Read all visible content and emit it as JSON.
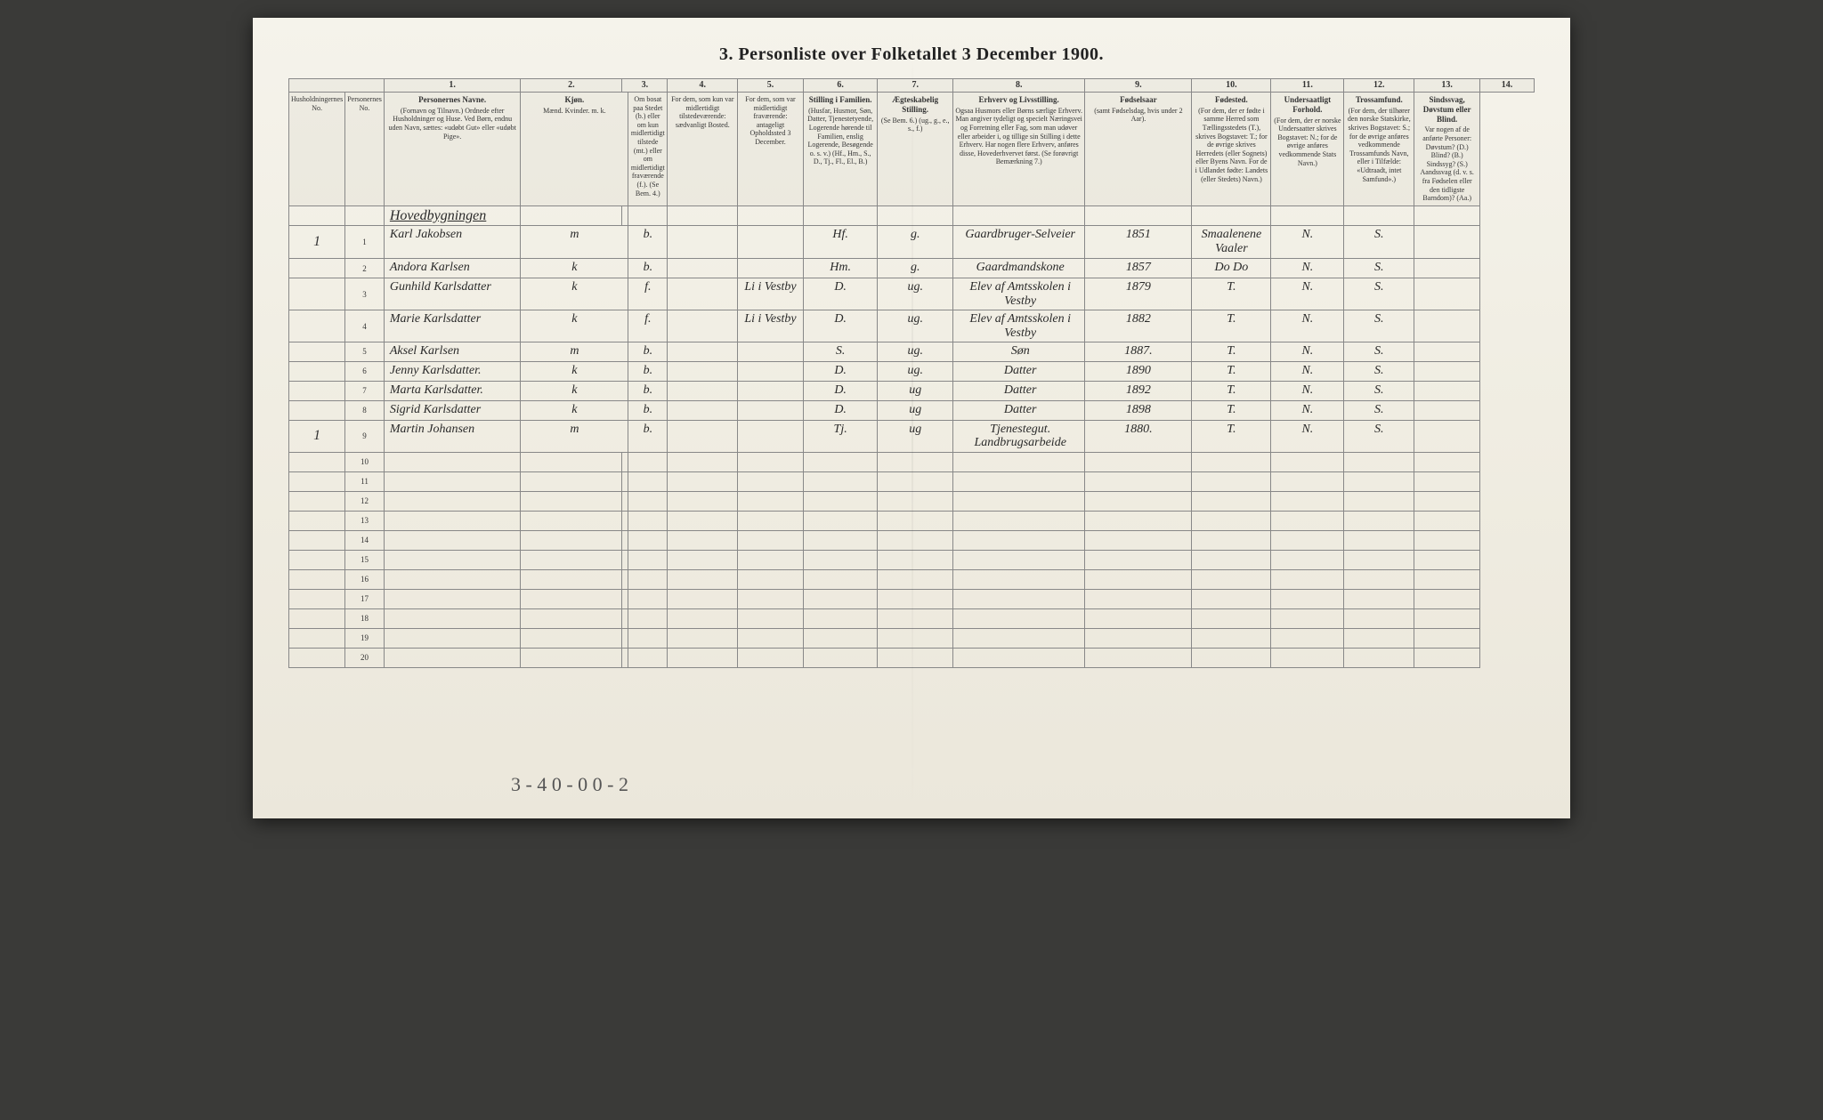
{
  "title": "3. Personliste over Folketallet 3 December 1900.",
  "columns": {
    "nums": [
      "",
      "1.",
      "2.",
      "3.",
      "4.",
      "5.",
      "6.",
      "7.",
      "8.",
      "9.",
      "10.",
      "11.",
      "12.",
      "13.",
      "14."
    ],
    "headers": [
      {
        "b": "",
        "t": "Husholdningernes No."
      },
      {
        "b": "",
        "t": "Personernes No."
      },
      {
        "b": "Personernes Navne.",
        "t": "(Fornavn og Tilnavn.) Ordnede efter Husholdninger og Huse. Ved Børn, endnu uden Navn, sættes: «udøbt Gut» eller «udøbt Pige»."
      },
      {
        "b": "Kjøn.",
        "t": "Mænd. Kvinder. m. k."
      },
      {
        "b": "",
        "t": "Om bosat paa Stedet (b.) eller om kun midlertidigt tilstede (mt.) eller om midlertidigt fraværende (f.). (Se Bem. 4.)"
      },
      {
        "b": "",
        "t": "For dem, som kun var midlertidigt tilstedeværende: sædvanligt Bosted."
      },
      {
        "b": "",
        "t": "For dem, som var midlertidigt fraværende: antageligt Opholdssted 3 December."
      },
      {
        "b": "Stilling i Familien.",
        "t": "(Husfar, Husmor, Søn, Datter, Tjenestetyende, Logerende hørende til Familien, enslig Logerende, Besøgende o. s. v.) (Hf., Hm., S., D., Tj., Fl., El., B.)"
      },
      {
        "b": "Ægteskabelig Stilling.",
        "t": "(Se Bem. 6.) (ug., g., e., s., f.)"
      },
      {
        "b": "Erhverv og Livsstilling.",
        "t": "Ogsaa Husmors eller Børns særlige Erhverv. Man angiver tydeligt og specielt Næringsvei og Forretning eller Fag, som man udøver eller arbeider i, og tillige sin Stilling i dette Erhverv. Har nogen flere Erhverv, anføres disse, Hovederhvervet først. (Se forøvrigt Bemærkning 7.)"
      },
      {
        "b": "Fødselsaar",
        "t": "(samt Fødselsdag, hvis under 2 Aar)."
      },
      {
        "b": "Fødested.",
        "t": "(For dem, der er fødte i samme Herred som Tællingsstedets (T.), skrives Bogstavet: T.; for de øvrige skrives Herredets (eller Sognets) eller Byens Navn. For de i Udlandet fødte: Landets (eller Stedets) Navn.)"
      },
      {
        "b": "Undersaatligt Forhold.",
        "t": "(For dem, der er norske Undersaatter skrives Bogstavet: N.; for de øvrige anføres vedkommende Stats Navn.)"
      },
      {
        "b": "Trossamfund.",
        "t": "(For dem, der tilhører den norske Statskirke, skrives Bogstavet: S.; for de øvrige anføres vedkommende Trossamfunds Navn, eller i Tilfælde: «Udtraadt, intet Samfund».)"
      },
      {
        "b": "Sindssvag, Døvstum eller Blind.",
        "t": "Var nogen af de anførte Personer: Døvstum? (D.) Blind? (B.) Sindssyg? (S.) Aandssvag (d. v. s. fra Fødselen eller den tidligste Barndom)? (Aa.)"
      }
    ]
  },
  "heading_row": "Hovedbygningen",
  "rows": [
    {
      "hh": "1",
      "n": "1",
      "name": "Karl Jakobsen",
      "kj": "m",
      "bos": "b.",
      "c5": "",
      "c6": "",
      "c7": "Hf.",
      "c8": "g.",
      "c9": "Gaardbruger-Selveier",
      "c10": "1851",
      "c11": "Smaalenene Vaaler",
      "c12": "N.",
      "c13": "S.",
      "c14": ""
    },
    {
      "hh": "",
      "n": "2",
      "name": "Andora Karlsen",
      "kj": "k",
      "bos": "b.",
      "c5": "",
      "c6": "",
      "c7": "Hm.",
      "c8": "g.",
      "c9": "Gaardmandskone",
      "c10": "1857",
      "c11": "Do  Do",
      "c12": "N.",
      "c13": "S.",
      "c14": ""
    },
    {
      "hh": "",
      "n": "3",
      "name": "Gunhild Karlsdatter",
      "kj": "k",
      "bos": "f.",
      "c5": "",
      "c6": "Li i Vestby",
      "c7": "D.",
      "c8": "ug.",
      "c9": "Elev af Amtsskolen i Vestby",
      "c10": "1879",
      "c11": "T.",
      "c12": "N.",
      "c13": "S.",
      "c14": ""
    },
    {
      "hh": "",
      "n": "4",
      "name": "Marie Karlsdatter",
      "kj": "k",
      "bos": "f.",
      "c5": "",
      "c6": "Li i Vestby",
      "c7": "D.",
      "c8": "ug.",
      "c9": "Elev af Amtsskolen i Vestby",
      "c10": "1882",
      "c11": "T.",
      "c12": "N.",
      "c13": "S.",
      "c14": ""
    },
    {
      "hh": "",
      "n": "5",
      "name": "Aksel Karlsen",
      "kj": "m",
      "bos": "b.",
      "c5": "",
      "c6": "",
      "c7": "S.",
      "c8": "ug.",
      "c9": "Søn",
      "c10": "1887.",
      "c11": "T.",
      "c12": "N.",
      "c13": "S.",
      "c14": ""
    },
    {
      "hh": "",
      "n": "6",
      "name": "Jenny Karlsdatter.",
      "kj": "k",
      "bos": "b.",
      "c5": "",
      "c6": "",
      "c7": "D.",
      "c8": "ug.",
      "c9": "Datter",
      "c10": "1890",
      "c11": "T.",
      "c12": "N.",
      "c13": "S.",
      "c14": ""
    },
    {
      "hh": "",
      "n": "7",
      "name": "Marta Karlsdatter.",
      "kj": "k",
      "bos": "b.",
      "c5": "",
      "c6": "",
      "c7": "D.",
      "c8": "ug",
      "c9": "Datter",
      "c10": "1892",
      "c11": "T.",
      "c12": "N.",
      "c13": "S.",
      "c14": ""
    },
    {
      "hh": "",
      "n": "8",
      "name": "Sigrid Karlsdatter",
      "kj": "k",
      "bos": "b.",
      "c5": "",
      "c6": "",
      "c7": "D.",
      "c8": "ug",
      "c9": "Datter",
      "c10": "1898",
      "c11": "T.",
      "c12": "N.",
      "c13": "S.",
      "c14": ""
    },
    {
      "hh": "1",
      "n": "9",
      "name": "Martin Johansen",
      "kj": "m",
      "bos": "b.",
      "c5": "",
      "c6": "",
      "c7": "Tj.",
      "c8": "ug",
      "c9": "Tjenestegut. Landbrugsarbeide",
      "c10": "1880.",
      "c11": "T.",
      "c12": "N.",
      "c13": "S.",
      "c14": ""
    }
  ],
  "empty_rows": [
    "10",
    "11",
    "12",
    "13",
    "14",
    "15",
    "16",
    "17",
    "18",
    "19",
    "20"
  ],
  "footnote": "3 - 4   0 - 0   0 - 2",
  "page_number": "2"
}
